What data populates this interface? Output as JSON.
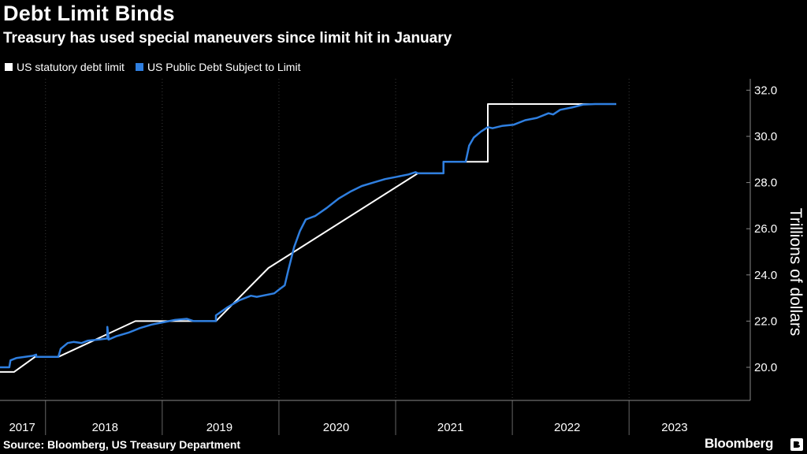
{
  "header": {
    "title": "Debt Limit Binds",
    "subtitle": "Treasury has used special maneuvers since limit hit in January"
  },
  "footer": {
    "source": "Source: Bloomberg, US Treasury Department",
    "logo_text": "Bloomberg"
  },
  "colors": {
    "background": "#000000",
    "limit_line": "#ffffff",
    "debt_line": "#2f7fe0",
    "grid": "#3a3a3a"
  },
  "chart_data": {
    "type": "line",
    "title": "Debt Limit Binds",
    "subtitle": "Treasury has used special maneuvers since limit hit in January",
    "xlabel": "",
    "ylabel": "Trillions of dollars",
    "xlim": [
      2017.0,
      2023.28
    ],
    "ylim": [
      19.0,
      32.4
    ],
    "yticks": [
      20.0,
      22.0,
      24.0,
      26.0,
      28.0,
      30.0,
      32.0
    ],
    "ytick_labels": [
      "20.0",
      "22.0",
      "24.0",
      "26.0",
      "28.0",
      "30.0",
      "32.0"
    ],
    "year_labels": [
      {
        "label": "2017",
        "center": 2017.19
      },
      {
        "label": "2018",
        "center": 2017.9
      },
      {
        "label": "2019",
        "center": 2018.88
      },
      {
        "label": "2020",
        "center": 2019.88
      },
      {
        "label": "2021",
        "center": 2020.86
      },
      {
        "label": "2022",
        "center": 2021.86
      },
      {
        "label": "2023",
        "center": 2022.78
      }
    ],
    "year_dividers": [
      2017.39,
      2018.39,
      2019.39,
      2020.39,
      2021.39,
      2022.39
    ],
    "grid": "vertical-dotted",
    "legend_position": "top-left",
    "series": [
      {
        "name": "US statutory debt limit",
        "color": "#ffffff",
        "x": [
          2017.0,
          2017.12,
          2017.3,
          2017.5,
          2018.16,
          2018.85,
          2019.3,
          2020.58,
          2020.8,
          2020.8,
          2020.99,
          2020.99,
          2021.18,
          2021.18,
          2022.28
        ],
        "y": [
          19.8,
          19.8,
          20.45,
          20.45,
          22.0,
          22.0,
          24.3,
          28.4,
          28.4,
          28.9,
          28.9,
          28.9,
          28.9,
          31.4,
          31.4
        ]
      },
      {
        "name": "US Public Debt Subject to Limit",
        "color": "#2f7fe0",
        "x": [
          2017.0,
          2017.08,
          2017.09,
          2017.14,
          2017.28,
          2017.31,
          2017.31,
          2017.5,
          2017.52,
          2017.58,
          2017.63,
          2017.7,
          2017.75,
          2017.85,
          2017.92,
          2017.92,
          2017.93,
          2017.93,
          2018.0,
          2018.1,
          2018.2,
          2018.3,
          2018.4,
          2018.5,
          2018.6,
          2018.66,
          2018.67,
          2018.85,
          2018.85,
          2018.95,
          2019.05,
          2019.15,
          2019.2,
          2019.35,
          2019.4,
          2019.44,
          2019.47,
          2019.52,
          2019.57,
          2019.62,
          2019.7,
          2019.8,
          2019.9,
          2020.0,
          2020.1,
          2020.2,
          2020.3,
          2020.4,
          2020.5,
          2020.56,
          2020.58,
          2020.8,
          2020.8,
          2020.99,
          2021.02,
          2021.06,
          2021.12,
          2021.18,
          2021.22,
          2021.3,
          2021.4,
          2021.5,
          2021.6,
          2021.7,
          2021.74,
          2021.8,
          2021.9,
          2021.94,
          2022.0,
          2022.1,
          2022.2,
          2022.28
        ],
        "y": [
          20.0,
          20.0,
          20.3,
          20.4,
          20.5,
          20.55,
          20.45,
          20.45,
          20.8,
          21.05,
          21.1,
          21.05,
          21.15,
          21.2,
          21.25,
          21.75,
          21.3,
          21.2,
          21.35,
          21.5,
          21.7,
          21.85,
          21.95,
          22.05,
          22.1,
          22.0,
          22.0,
          22.0,
          22.25,
          22.6,
          22.9,
          23.1,
          23.05,
          23.2,
          23.4,
          23.55,
          24.2,
          25.2,
          25.9,
          26.4,
          26.55,
          26.9,
          27.3,
          27.6,
          27.85,
          28.0,
          28.15,
          28.25,
          28.35,
          28.45,
          28.4,
          28.4,
          28.9,
          28.9,
          29.6,
          29.95,
          30.2,
          30.4,
          30.35,
          30.45,
          30.5,
          30.7,
          30.8,
          31.0,
          30.95,
          31.15,
          31.25,
          31.3,
          31.38,
          31.4,
          31.4,
          31.4
        ]
      }
    ]
  }
}
